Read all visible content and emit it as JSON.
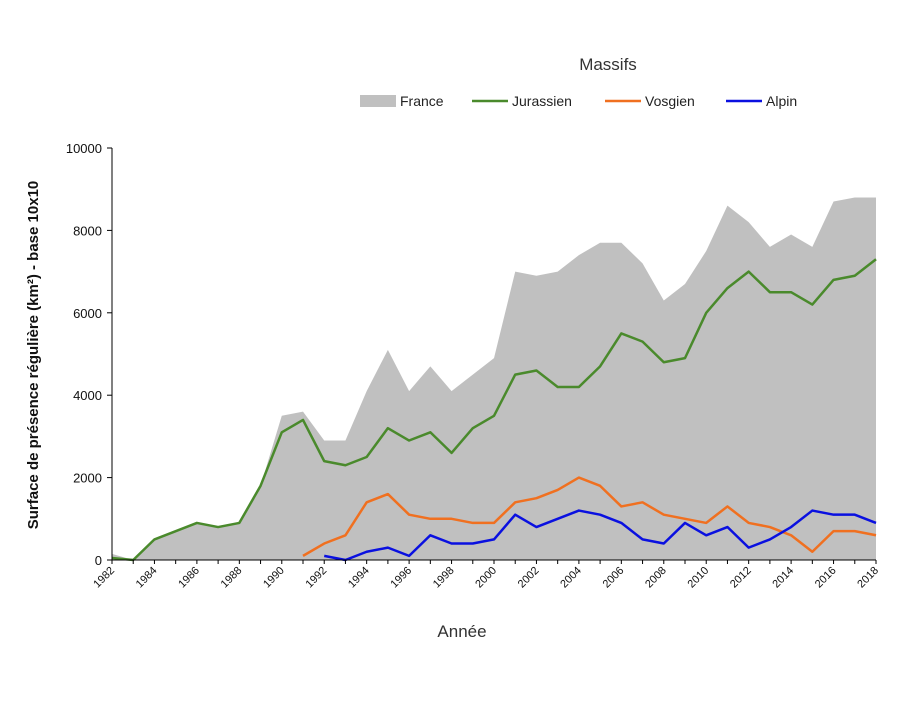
{
  "chart_data": {
    "type": "area+line",
    "legend_title": "Massifs",
    "xlabel": "Année",
    "ylabel": "Surface de présence régulière (km²) - base 10x10",
    "ylim": [
      0,
      10000
    ],
    "yticks": [
      0,
      2000,
      4000,
      6000,
      8000,
      10000
    ],
    "xlim": [
      1982,
      2018
    ],
    "xticks": [
      1982,
      1984,
      1986,
      1988,
      1990,
      1992,
      1994,
      1996,
      1998,
      2000,
      2002,
      2004,
      2006,
      2008,
      2010,
      2012,
      2014,
      2016,
      2018
    ],
    "legend_position": "top",
    "series": [
      {
        "name": "France",
        "kind": "area",
        "color": "#c0c0c0",
        "x": [
          1982,
          1983,
          1984,
          1985,
          1986,
          1987,
          1988,
          1989,
          1990,
          1991,
          1992,
          1993,
          1994,
          1995,
          1996,
          1997,
          1998,
          1999,
          2000,
          2001,
          2002,
          2003,
          2004,
          2005,
          2006,
          2007,
          2008,
          2009,
          2010,
          2011,
          2012,
          2013,
          2014,
          2015,
          2016,
          2017,
          2018
        ],
        "values": [
          150,
          0,
          500,
          700,
          900,
          800,
          900,
          1800,
          3500,
          3600,
          2900,
          2900,
          4100,
          5100,
          4100,
          4700,
          4100,
          4500,
          4900,
          7000,
          6900,
          7000,
          7400,
          7700,
          7700,
          7200,
          6300,
          6700,
          7500,
          8600,
          8200,
          7600,
          7900,
          7600,
          8700,
          8800,
          8800
        ]
      },
      {
        "name": "Jurassien",
        "kind": "line",
        "color": "#4a8a2c",
        "x": [
          1982,
          1983,
          1984,
          1985,
          1986,
          1987,
          1988,
          1989,
          1990,
          1991,
          1992,
          1993,
          1994,
          1995,
          1996,
          1997,
          1998,
          1999,
          2000,
          2001,
          2002,
          2003,
          2004,
          2005,
          2006,
          2007,
          2008,
          2009,
          2010,
          2011,
          2012,
          2013,
          2014,
          2015,
          2016,
          2017,
          2018
        ],
        "values": [
          50,
          0,
          500,
          700,
          900,
          800,
          900,
          1800,
          3100,
          3400,
          2400,
          2300,
          2500,
          3200,
          2900,
          3100,
          2600,
          3200,
          3500,
          4500,
          4600,
          4200,
          4200,
          4700,
          5500,
          5300,
          4800,
          4900,
          6000,
          6600,
          7000,
          6500,
          6500,
          6200,
          6800,
          6900,
          7300
        ]
      },
      {
        "name": "Vosgien",
        "kind": "line",
        "color": "#f07020",
        "x": [
          1991,
          1992,
          1993,
          1994,
          1995,
          1996,
          1997,
          1998,
          1999,
          2000,
          2001,
          2002,
          2003,
          2004,
          2005,
          2006,
          2007,
          2008,
          2009,
          2010,
          2011,
          2012,
          2013,
          2014,
          2015,
          2016,
          2017,
          2018
        ],
        "values": [
          100,
          400,
          600,
          1400,
          1600,
          1100,
          1000,
          1000,
          900,
          900,
          1400,
          1500,
          1700,
          2000,
          1800,
          1300,
          1400,
          1100,
          1000,
          900,
          1300,
          900,
          800,
          600,
          200,
          700,
          700,
          600
        ]
      },
      {
        "name": "Alpin",
        "kind": "line",
        "color": "#0a10e0",
        "x": [
          1992,
          1993,
          1994,
          1995,
          1996,
          1997,
          1998,
          1999,
          2000,
          2001,
          2002,
          2003,
          2004,
          2005,
          2006,
          2007,
          2008,
          2009,
          2010,
          2011,
          2012,
          2013,
          2014,
          2015,
          2016,
          2017,
          2018
        ],
        "values": [
          100,
          0,
          200,
          300,
          100,
          600,
          400,
          400,
          500,
          1100,
          800,
          1000,
          1200,
          1100,
          900,
          500,
          400,
          900,
          600,
          800,
          300,
          500,
          800,
          1200,
          1100,
          1100,
          900
        ]
      }
    ]
  }
}
